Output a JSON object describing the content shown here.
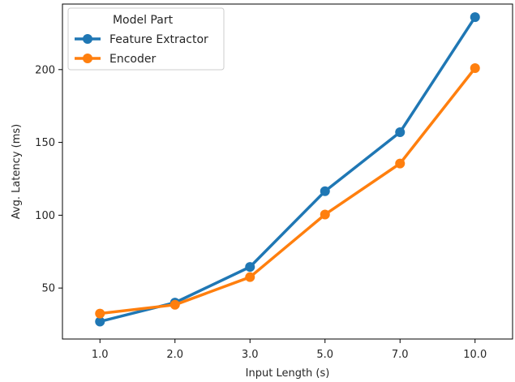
{
  "chart_data": {
    "type": "line",
    "categories": [
      "1.0",
      "2.0",
      "3.0",
      "5.0",
      "7.0",
      "10.0"
    ],
    "series": [
      {
        "name": "Feature Extractor",
        "color": "#1f77b4",
        "values": [
          27,
          40,
          64.5,
          116.5,
          157,
          236
        ]
      },
      {
        "name": "Encoder",
        "color": "#ff7f0e",
        "values": [
          32.5,
          38.5,
          57.5,
          100.5,
          135.5,
          201
        ]
      }
    ],
    "xlabel": "Input Length (s)",
    "ylabel": "Avg. Latency (ms)",
    "yticks": [
      50,
      100,
      150,
      200
    ],
    "ylim": [
      15,
      245
    ],
    "grid": false,
    "legend": {
      "title": "Model Part",
      "placement": "top-left"
    }
  }
}
